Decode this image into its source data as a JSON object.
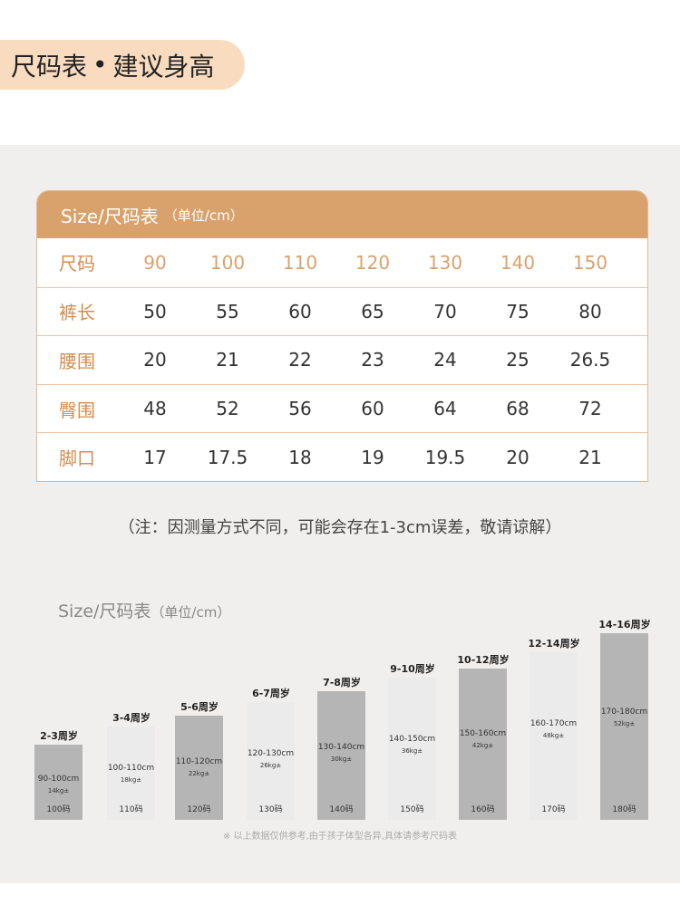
{
  "title": {
    "main": "尺码表",
    "bullet": "•",
    "sub": "建议身高"
  },
  "table": {
    "header": "Size/尺码表",
    "unit": "（单位/cm）",
    "rows": [
      {
        "label": "尺码",
        "values": [
          "90",
          "100",
          "110",
          "120",
          "130",
          "140",
          "150"
        ]
      },
      {
        "label": "裤长",
        "values": [
          "50",
          "55",
          "60",
          "65",
          "70",
          "75",
          "80"
        ]
      },
      {
        "label": "腰围",
        "values": [
          "20",
          "21",
          "22",
          "23",
          "24",
          "25",
          "26.5"
        ]
      },
      {
        "label": "臀围",
        "values": [
          "48",
          "52",
          "56",
          "60",
          "64",
          "68",
          "72"
        ]
      },
      {
        "label": "脚口",
        "values": [
          "17",
          "17.5",
          "18",
          "19",
          "19.5",
          "20",
          "21"
        ]
      }
    ]
  },
  "note": "（注：因测量方式不同，可能会存在1-3cm误差，敬请谅解）",
  "chart": {
    "title": "Size/尺码表",
    "unit": "（单位/cm）",
    "bars": [
      {
        "age": "2-3周岁",
        "height": "90-100cm",
        "weight": "14kg±",
        "size": "100码",
        "shade": "dark"
      },
      {
        "age": "3-4周岁",
        "height": "100-110cm",
        "weight": "18kg±",
        "size": "110码",
        "shade": "light"
      },
      {
        "age": "5-6周岁",
        "height": "110-120cm",
        "weight": "22kg±",
        "size": "120码",
        "shade": "dark"
      },
      {
        "age": "6-7周岁",
        "height": "120-130cm",
        "weight": "26kg±",
        "size": "130码",
        "shade": "light"
      },
      {
        "age": "7-8周岁",
        "height": "130-140cm",
        "weight": "30kg±",
        "size": "140码",
        "shade": "dark"
      },
      {
        "age": "9-10周岁",
        "height": "140-150cm",
        "weight": "36kg±",
        "size": "150码",
        "shade": "light"
      },
      {
        "age": "10-12周岁",
        "height": "150-160cm",
        "weight": "42kg±",
        "size": "160码",
        "shade": "dark"
      },
      {
        "age": "12-14周岁",
        "height": "160-170cm",
        "weight": "48kg±",
        "size": "170码",
        "shade": "light"
      },
      {
        "age": "14-16周岁",
        "height": "170-180cm",
        "weight": "52kg±",
        "size": "180码",
        "shade": "dark"
      }
    ],
    "disclaimer": "※  以上数据仅供参考,由于孩子体型各异,具体请参考尺码表"
  },
  "colors": {
    "accent": "#d9a26c",
    "pill": "#f9dcc0",
    "panel": "#f1efee"
  }
}
